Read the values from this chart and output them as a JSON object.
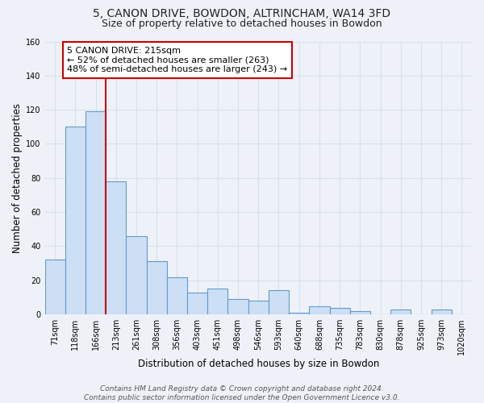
{
  "title": "5, CANON DRIVE, BOWDON, ALTRINCHAM, WA14 3FD",
  "subtitle": "Size of property relative to detached houses in Bowdon",
  "xlabel": "Distribution of detached houses by size in Bowdon",
  "ylabel": "Number of detached properties",
  "categories": [
    "71sqm",
    "118sqm",
    "166sqm",
    "213sqm",
    "261sqm",
    "308sqm",
    "356sqm",
    "403sqm",
    "451sqm",
    "498sqm",
    "546sqm",
    "593sqm",
    "640sqm",
    "688sqm",
    "735sqm",
    "783sqm",
    "830sqm",
    "878sqm",
    "925sqm",
    "973sqm",
    "1020sqm"
  ],
  "values": [
    32,
    110,
    119,
    78,
    46,
    31,
    22,
    13,
    15,
    9,
    8,
    14,
    1,
    5,
    4,
    2,
    0,
    3,
    0,
    3,
    0
  ],
  "bar_color": "#ccdff5",
  "bar_edge_color": "#6699cc",
  "highlight_line_index": 2,
  "highlight_line_color": "#cc0000",
  "annotation_text": "5 CANON DRIVE: 215sqm\n← 52% of detached houses are smaller (263)\n48% of semi-detached houses are larger (243) →",
  "annotation_box_color": "white",
  "annotation_box_edge_color": "#cc0000",
  "ylim": [
    0,
    160
  ],
  "yticks": [
    0,
    20,
    40,
    60,
    80,
    100,
    120,
    140,
    160
  ],
  "footer_line1": "Contains HM Land Registry data © Crown copyright and database right 2024.",
  "footer_line2": "Contains public sector information licensed under the Open Government Licence v3.0.",
  "background_color": "#eef2f8",
  "grid_color": "#d8e0ec",
  "title_fontsize": 10,
  "subtitle_fontsize": 9,
  "label_fontsize": 8.5,
  "tick_fontsize": 7,
  "annotation_fontsize": 8,
  "footer_fontsize": 6.5
}
